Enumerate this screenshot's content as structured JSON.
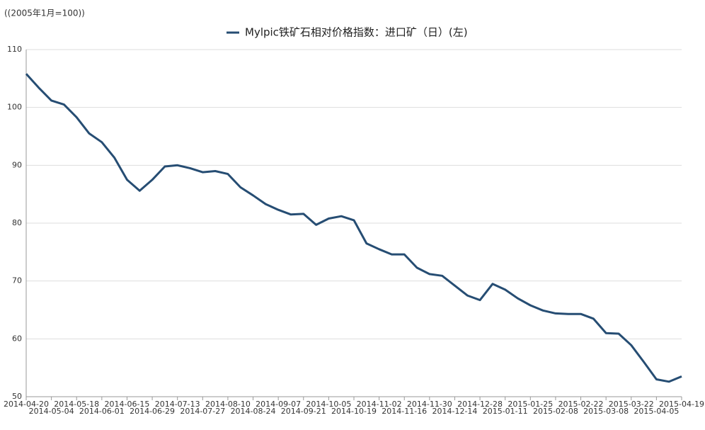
{
  "chart_data": {
    "type": "line",
    "subtitle": "((2005年1月=100))",
    "x": [
      "2014-04-20",
      "2014-04-27",
      "2014-05-04",
      "2014-05-11",
      "2014-05-18",
      "2014-05-25",
      "2014-06-01",
      "2014-06-08",
      "2014-06-15",
      "2014-06-22",
      "2014-06-29",
      "2014-07-06",
      "2014-07-13",
      "2014-07-20",
      "2014-07-27",
      "2014-08-03",
      "2014-08-10",
      "2014-08-17",
      "2014-08-24",
      "2014-08-31",
      "2014-09-07",
      "2014-09-14",
      "2014-09-21",
      "2014-09-28",
      "2014-10-05",
      "2014-10-12",
      "2014-10-19",
      "2014-10-26",
      "2014-11-02",
      "2014-11-09",
      "2014-11-16",
      "2014-11-23",
      "2014-11-30",
      "2014-12-07",
      "2014-12-14",
      "2014-12-21",
      "2014-12-28",
      "2015-01-04",
      "2015-01-11",
      "2015-01-18",
      "2015-01-25",
      "2015-02-01",
      "2015-02-08",
      "2015-02-15",
      "2015-02-22",
      "2015-03-01",
      "2015-03-08",
      "2015-03-15",
      "2015-03-22",
      "2015-03-29",
      "2015-04-05",
      "2015-04-12",
      "2015-04-19"
    ],
    "series": [
      {
        "name": "Mylpic铁矿石相对价格指数：进口矿（日）(左)",
        "color": "#264d73",
        "values": [
          105.8,
          103.4,
          101.2,
          100.5,
          98.3,
          95.5,
          94,
          91.3,
          87.5,
          85.6,
          87.5,
          89.8,
          90,
          89.5,
          88.8,
          89,
          88.5,
          86.2,
          84.8,
          83.3,
          82.3,
          81.5,
          81.6,
          79.7,
          80.8,
          81.2,
          80.5,
          76.5,
          75.5,
          74.6,
          74.6,
          72.3,
          71.2,
          70.9,
          69.2,
          67.5,
          66.7,
          69.5,
          68.5,
          67,
          65.8,
          64.9,
          64.4,
          64.3,
          64.3,
          63.5,
          61,
          60.9,
          58.9,
          56,
          53,
          52.6,
          53.5
        ]
      }
    ],
    "xlim": [
      "2014-04-20",
      "2015-04-19"
    ],
    "xticks": [
      "2014-04-20",
      "2014-05-04",
      "2014-05-18",
      "2014-06-01",
      "2014-06-15",
      "2014-06-29",
      "2014-07-13",
      "2014-07-27",
      "2014-08-10",
      "2014-08-24",
      "2014-09-07",
      "2014-09-21",
      "2014-10-05",
      "2014-10-19",
      "2014-11-02",
      "2014-11-16",
      "2014-11-30",
      "2014-12-14",
      "2014-12-28",
      "2015-01-11",
      "2015-01-25",
      "2015-02-08",
      "2015-02-22",
      "2015-03-08",
      "2015-03-22",
      "2015-04-05",
      "2015-04-19"
    ],
    "ylim": [
      50,
      110
    ],
    "yticks": [
      50,
      60,
      70,
      80,
      90,
      100,
      110
    ],
    "grid": true,
    "legend": "top"
  }
}
